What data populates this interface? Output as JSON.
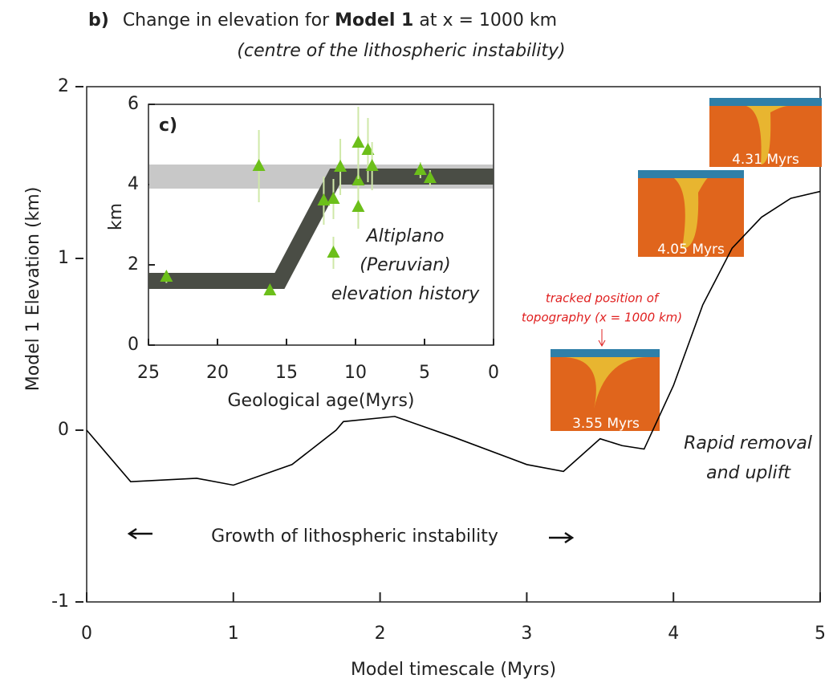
{
  "chart_data": [
    {
      "type": "line",
      "title_parts": [
        "b)",
        "Change in elevation for",
        "Model 1",
        "at x = 1000 km"
      ],
      "subtitle": "(centre of the lithospheric instability)",
      "xlabel": "Model timescale (Myrs)",
      "ylabel": "Model 1 Elevation (km)",
      "x": [
        0,
        0.3,
        0.75,
        1.0,
        1.4,
        1.7,
        1.75,
        2.1,
        2.5,
        3.0,
        3.25,
        3.5,
        3.65,
        3.8,
        4.0,
        4.2,
        4.4,
        4.6,
        4.8,
        5.0
      ],
      "series": [
        {
          "color": "#000000",
          "values": [
            0,
            -0.3,
            -0.28,
            -0.32,
            -0.2,
            0,
            0.05,
            0.08,
            -0.04,
            -0.2,
            -0.24,
            -0.05,
            -0.09,
            -0.11,
            0.26,
            0.73,
            1.06,
            1.24,
            1.35,
            1.39
          ]
        }
      ],
      "xlim": [
        0,
        5
      ],
      "xticks": [
        0,
        1,
        2,
        3,
        4,
        5
      ],
      "ylim": [
        -1,
        2
      ],
      "yticks": [
        -1,
        0,
        1,
        2
      ],
      "annotations": {
        "growth": "Growth of lithospheric instability",
        "removal": [
          "Rapid  removal",
          "and uplift"
        ],
        "tracked": [
          "tracked position of",
          "topography (x = 1000 km)"
        ],
        "snapshots": [
          "3.55 Myrs",
          "4.05 Myrs",
          "4.31 Myrs"
        ]
      }
    },
    {
      "type": "scatter",
      "panel": "c)",
      "xlabel": "Geological age(Myrs)",
      "ylabel": "km",
      "annotation": [
        "Altiplano",
        "(Peruvian)",
        "elevation history"
      ],
      "x": [
        23.7,
        17.0,
        16.2,
        12.3,
        11.6,
        11.6,
        11.1,
        9.8,
        9.8,
        9.8,
        9.1,
        8.8,
        5.3,
        4.6
      ],
      "series": [
        {
          "color": "#6cbf1a",
          "values": [
            1.7,
            4.46,
            1.36,
            3.6,
            3.64,
            2.3,
            4.44,
            4.1,
            5.04,
            3.44,
            4.86,
            4.46,
            4.36,
            4.16
          ],
          "yerr": [
            0.15,
            0.9,
            0.1,
            0.6,
            0.5,
            0.4,
            0.7,
            1.2,
            0.9,
            0.5,
            0.8,
            0.6,
            0.2,
            0.2
          ]
        }
      ],
      "band": [
        3.9,
        4.5
      ],
      "trend": {
        "x": [
          25,
          15.5,
          11.5,
          0
        ],
        "values": [
          1.6,
          1.6,
          4.2,
          4.2
        ]
      },
      "xlim": [
        25,
        0
      ],
      "xticks": [
        25,
        20,
        15,
        10,
        5,
        0
      ],
      "ylim": [
        0,
        6
      ],
      "yticks": [
        0,
        2,
        4,
        6
      ]
    }
  ]
}
